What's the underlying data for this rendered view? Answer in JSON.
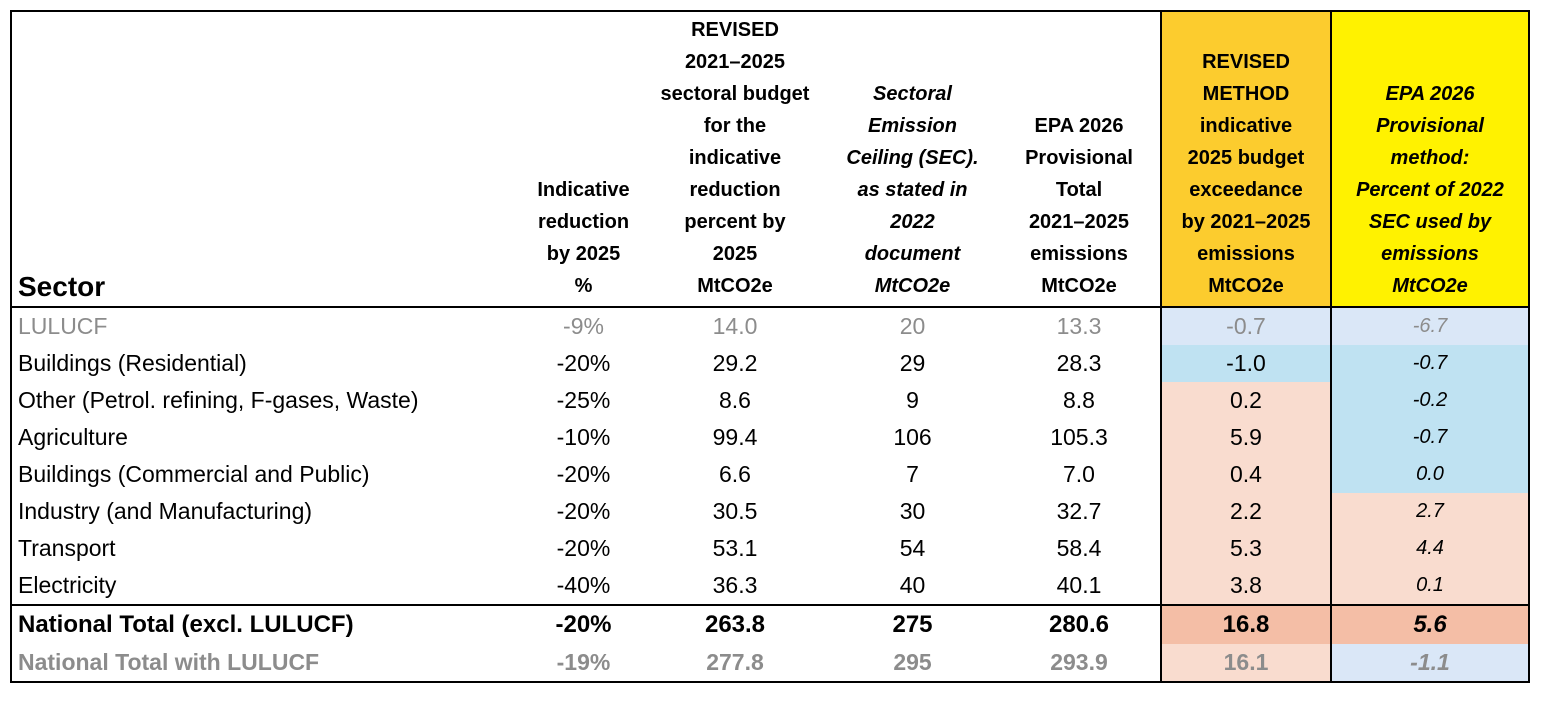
{
  "headers": {
    "sector": "Sector",
    "indicative_reduction": [
      "Indicative",
      "reduction",
      "by 2025",
      "%"
    ],
    "revised_budget": [
      "REVISED",
      "2021–2025",
      "sectoral budget",
      "for the",
      "indicative",
      "reduction",
      "percent by",
      "2025",
      "MtCO2e"
    ],
    "sec": [
      "Sectoral",
      "Emission",
      "Ceiling (SEC).",
      "as stated in",
      "2022",
      "document",
      "MtCO2e"
    ],
    "epa_total": [
      "EPA 2026",
      "Provisional",
      "Total",
      "2021–2025",
      "emissions",
      "MtCO2e"
    ],
    "revised_method": [
      "REVISED",
      "METHOD",
      "indicative",
      "2025 budget",
      "exceedance",
      "by 2021–2025",
      "emissions",
      "MtCO2e"
    ],
    "epa_provisional_method": [
      "EPA 2026",
      "Provisional",
      "method:",
      "Percent of 2022",
      "SEC used by",
      "emissions",
      "MtCO2e"
    ]
  },
  "header_colors": {
    "revised_method": "#fccc2e",
    "epa_provisional_method": "#fff200"
  },
  "cell_colors": {
    "light_blue": "#dae7f7",
    "blue": "#bfe2f2",
    "peach": "#f9dccf",
    "salmon": "#f4bea6",
    "grey_text": "#8c8c8c"
  },
  "rows": [
    {
      "sector": "LULUCF",
      "reduction": "-9%",
      "revised_budget": "14.0",
      "sec": "20",
      "epa_total": "13.3",
      "revised_exceedance": "-0.7",
      "provisional_pct": "-6.7"
    },
    {
      "sector": "Buildings (Residential)",
      "reduction": "-20%",
      "revised_budget": "29.2",
      "sec": "29",
      "epa_total": "28.3",
      "revised_exceedance": "-1.0",
      "provisional_pct": "-0.7"
    },
    {
      "sector": "Other (Petrol. refining, F-gases, Waste)",
      "reduction": "-25%",
      "revised_budget": "8.6",
      "sec": "9",
      "epa_total": "8.8",
      "revised_exceedance": "0.2",
      "provisional_pct": "-0.2"
    },
    {
      "sector": "Agriculture",
      "reduction": "-10%",
      "revised_budget": "99.4",
      "sec": "106",
      "epa_total": "105.3",
      "revised_exceedance": "5.9",
      "provisional_pct": "-0.7"
    },
    {
      "sector": "Buildings (Commercial and Public)",
      "reduction": "-20%",
      "revised_budget": "6.6",
      "sec": "7",
      "epa_total": "7.0",
      "revised_exceedance": "0.4",
      "provisional_pct": "0.0"
    },
    {
      "sector": "Industry (and Manufacturing)",
      "reduction": "-20%",
      "revised_budget": "30.5",
      "sec": "30",
      "epa_total": "32.7",
      "revised_exceedance": "2.2",
      "provisional_pct": "2.7"
    },
    {
      "sector": "Transport",
      "reduction": "-20%",
      "revised_budget": "53.1",
      "sec": "54",
      "epa_total": "58.4",
      "revised_exceedance": "5.3",
      "provisional_pct": "4.4"
    },
    {
      "sector": "Electricity",
      "reduction": "-40%",
      "revised_budget": "36.3",
      "sec": "40",
      "epa_total": "40.1",
      "revised_exceedance": "3.8",
      "provisional_pct": "0.1"
    }
  ],
  "totals": [
    {
      "sector": "National Total (excl. LULUCF)",
      "reduction": "-20%",
      "revised_budget": "263.8",
      "sec": "275",
      "epa_total": "280.6",
      "revised_exceedance": "16.8",
      "provisional_pct": "5.6"
    },
    {
      "sector": "National Total with LULUCF",
      "reduction": "-19%",
      "revised_budget": "277.8",
      "sec": "295",
      "epa_total": "293.9",
      "revised_exceedance": "16.1",
      "provisional_pct": "-1.1"
    }
  ]
}
